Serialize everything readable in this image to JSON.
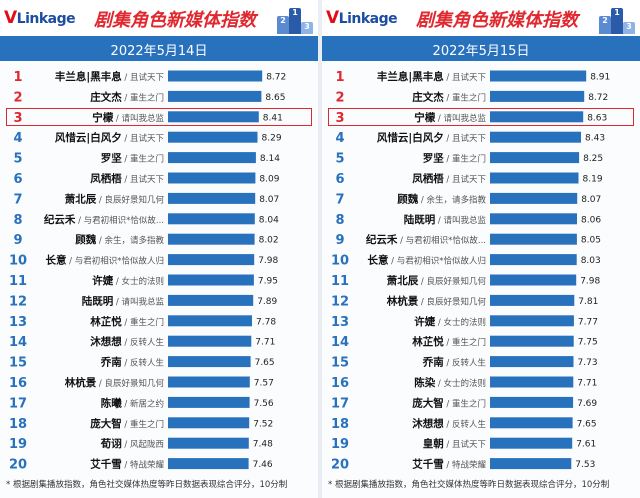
{
  "brand": {
    "logo_v": "V",
    "logo_rest": "Linkage"
  },
  "title": "剧集角色新媒体指数",
  "podium_labels": [
    "2",
    "1",
    "3"
  ],
  "footnote": "* 根据剧集播放指数，角色社交媒体热度等昨日数据表现综合评分，10分制",
  "colors": {
    "bar": "#2871bd",
    "rank_top": "#e0282f",
    "rank_rest": "#2871bd",
    "highlight": "#e0282f",
    "band": "#2871bd"
  },
  "chart_data": [
    {
      "type": "bar",
      "date": "2022年5月14日",
      "xlim": [
        0,
        10
      ],
      "highlight_rank": 3,
      "rows": [
        {
          "rank": "1",
          "name": "丰兰息|黑丰息",
          "drama": "且试天下",
          "value": 8.72
        },
        {
          "rank": "2",
          "name": "庄文杰",
          "drama": "重生之门",
          "value": 8.65
        },
        {
          "rank": "3",
          "name": "宁檬",
          "drama": "请叫我总监",
          "value": 8.41
        },
        {
          "rank": "4",
          "name": "风惜云|白风夕",
          "drama": "且试天下",
          "value": 8.29
        },
        {
          "rank": "5",
          "name": "罗坚",
          "drama": "重生之门",
          "value": 8.14
        },
        {
          "rank": "6",
          "name": "凤栖梧",
          "drama": "且试天下",
          "value": 8.09
        },
        {
          "rank": "7",
          "name": "萧北辰",
          "drama": "良辰好景知几何",
          "value": 8.07
        },
        {
          "rank": "8",
          "name": "纪云禾",
          "drama": "与君初相识*恰似故...",
          "value": 8.04
        },
        {
          "rank": "9",
          "name": "顾魏",
          "drama": "余生，请多指教",
          "value": 8.02
        },
        {
          "rank": "10",
          "name": "长意",
          "drama": "与君初相识*恰似故人归",
          "value": 7.98
        },
        {
          "rank": "11",
          "name": "许婕",
          "drama": "女士的法则",
          "value": 7.95
        },
        {
          "rank": "12",
          "name": "陆既明",
          "drama": "请叫我总监",
          "value": 7.89
        },
        {
          "rank": "13",
          "name": "林芷悦",
          "drama": "重生之门",
          "value": 7.78
        },
        {
          "rank": "14",
          "name": "沐想想",
          "drama": "反转人生",
          "value": 7.71
        },
        {
          "rank": "15",
          "name": "乔南",
          "drama": "反转人生",
          "value": 7.65
        },
        {
          "rank": "16",
          "name": "林杭景",
          "drama": "良辰好景知几何",
          "value": 7.57
        },
        {
          "rank": "17",
          "name": "陈曦",
          "drama": "新居之约",
          "value": 7.56
        },
        {
          "rank": "18",
          "name": "庞大智",
          "drama": "重生之门",
          "value": 7.52
        },
        {
          "rank": "19",
          "name": "荀诩",
          "drama": "风起陇西",
          "value": 7.48
        },
        {
          "rank": "20",
          "name": "艾千雪",
          "drama": "特战荣耀",
          "value": 7.46
        }
      ]
    },
    {
      "type": "bar",
      "date": "2022年5月15日",
      "xlim": [
        0,
        10
      ],
      "highlight_rank": 3,
      "rows": [
        {
          "rank": "1",
          "name": "丰兰息|黑丰息",
          "drama": "且试天下",
          "value": 8.91
        },
        {
          "rank": "2",
          "name": "庄文杰",
          "drama": "重生之门",
          "value": 8.72
        },
        {
          "rank": "3",
          "name": "宁檬",
          "drama": "请叫我总监",
          "value": 8.63
        },
        {
          "rank": "4",
          "name": "风惜云|白风夕",
          "drama": "且试天下",
          "value": 8.43
        },
        {
          "rank": "5",
          "name": "罗坚",
          "drama": "重生之门",
          "value": 8.25
        },
        {
          "rank": "6",
          "name": "凤栖梧",
          "drama": "且试天下",
          "value": 8.19
        },
        {
          "rank": "7",
          "name": "顾魏",
          "drama": "余生，请多指教",
          "value": 8.07
        },
        {
          "rank": "8",
          "name": "陆既明",
          "drama": "请叫我总监",
          "value": 8.06
        },
        {
          "rank": "9",
          "name": "纪云禾",
          "drama": "与君初相识*恰似故...",
          "value": 8.05
        },
        {
          "rank": "10",
          "name": "长意",
          "drama": "与君初相识*恰似故人归",
          "value": 8.03
        },
        {
          "rank": "11",
          "name": "萧北辰",
          "drama": "良辰好景知几何",
          "value": 7.98
        },
        {
          "rank": "12",
          "name": "林杭景",
          "drama": "良辰好景知几何",
          "value": 7.81
        },
        {
          "rank": "13",
          "name": "许婕",
          "drama": "女士的法则",
          "value": 7.77
        },
        {
          "rank": "14",
          "name": "林芷悦",
          "drama": "重生之门",
          "value": 7.75
        },
        {
          "rank": "15",
          "name": "乔南",
          "drama": "反转人生",
          "value": 7.73
        },
        {
          "rank": "16",
          "name": "陈染",
          "drama": "女士的法则",
          "value": 7.71
        },
        {
          "rank": "17",
          "name": "庞大智",
          "drama": "重生之门",
          "value": 7.69
        },
        {
          "rank": "18",
          "name": "沐想想",
          "drama": "反转人生",
          "value": 7.65
        },
        {
          "rank": "19",
          "name": "皇朝",
          "drama": "且试天下",
          "value": 7.61
        },
        {
          "rank": "20",
          "name": "艾千雪",
          "drama": "特战荣耀",
          "value": 7.53
        }
      ]
    }
  ]
}
